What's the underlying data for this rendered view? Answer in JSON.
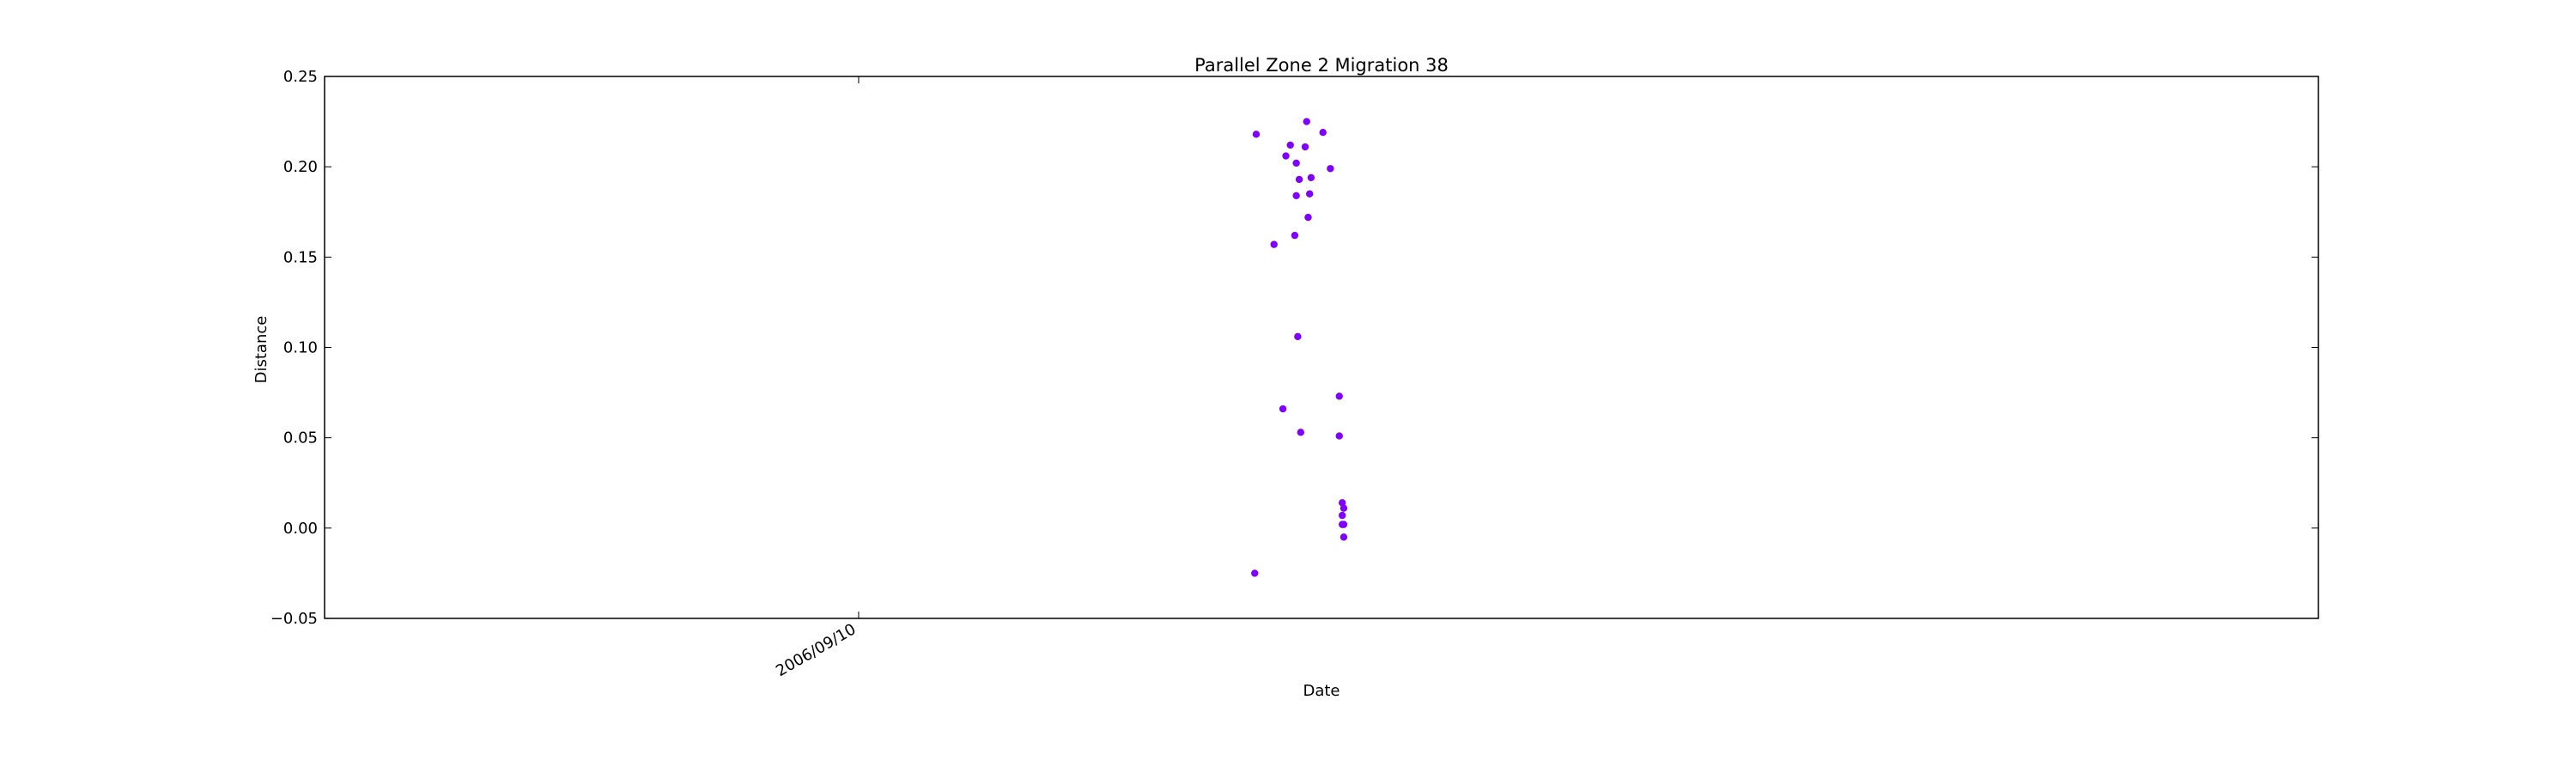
{
  "chart_data": {
    "type": "scatter",
    "title": "Parallel Zone 2 Migration 38",
    "xlabel": "Date",
    "ylabel": "Distance",
    "xlim": [
      "2006-08-26",
      "2006-10-21"
    ],
    "ylim": [
      -0.05,
      0.25
    ],
    "x_ticks": [
      {
        "value": "2006-09-10",
        "label": "2006/09/10"
      }
    ],
    "y_ticks": [
      {
        "value": -0.05,
        "label": "−0.05"
      },
      {
        "value": 0.0,
        "label": "0.00"
      },
      {
        "value": 0.05,
        "label": "0.05"
      },
      {
        "value": 0.1,
        "label": "0.10"
      },
      {
        "value": 0.15,
        "label": "0.15"
      },
      {
        "value": 0.2,
        "label": "0.20"
      },
      {
        "value": 0.25,
        "label": "0.25"
      }
    ],
    "grid": false,
    "marker_color": "#7f00ff",
    "points": [
      {
        "x": "2006-09-21T03:00",
        "y": -0.025
      },
      {
        "x": "2006-09-21T04:00",
        "y": 0.218
      },
      {
        "x": "2006-09-21T16:00",
        "y": 0.157
      },
      {
        "x": "2006-09-21T22:00",
        "y": 0.066
      },
      {
        "x": "2006-09-22T00:00",
        "y": 0.206
      },
      {
        "x": "2006-09-22T03:00",
        "y": 0.212
      },
      {
        "x": "2006-09-22T06:00",
        "y": 0.162
      },
      {
        "x": "2006-09-22T07:00",
        "y": 0.184
      },
      {
        "x": "2006-09-22T07:00",
        "y": 0.202
      },
      {
        "x": "2006-09-22T08:00",
        "y": 0.106
      },
      {
        "x": "2006-09-22T09:00",
        "y": 0.193
      },
      {
        "x": "2006-09-22T10:00",
        "y": 0.053
      },
      {
        "x": "2006-09-22T13:00",
        "y": 0.211
      },
      {
        "x": "2006-09-22T14:00",
        "y": 0.225
      },
      {
        "x": "2006-09-22T15:00",
        "y": 0.172
      },
      {
        "x": "2006-09-22T16:00",
        "y": 0.185
      },
      {
        "x": "2006-09-22T17:00",
        "y": 0.194
      },
      {
        "x": "2006-09-23T01:00",
        "y": 0.219
      },
      {
        "x": "2006-09-23T06:00",
        "y": 0.199
      },
      {
        "x": "2006-09-23T12:00",
        "y": 0.073
      },
      {
        "x": "2006-09-23T12:00",
        "y": 0.051
      },
      {
        "x": "2006-09-23T14:00",
        "y": 0.014
      },
      {
        "x": "2006-09-23T14:00",
        "y": 0.007
      },
      {
        "x": "2006-09-23T14:00",
        "y": 0.002
      },
      {
        "x": "2006-09-23T15:00",
        "y": 0.011
      },
      {
        "x": "2006-09-23T15:00",
        "y": 0.002
      },
      {
        "x": "2006-09-23T15:00",
        "y": -0.005
      }
    ]
  }
}
